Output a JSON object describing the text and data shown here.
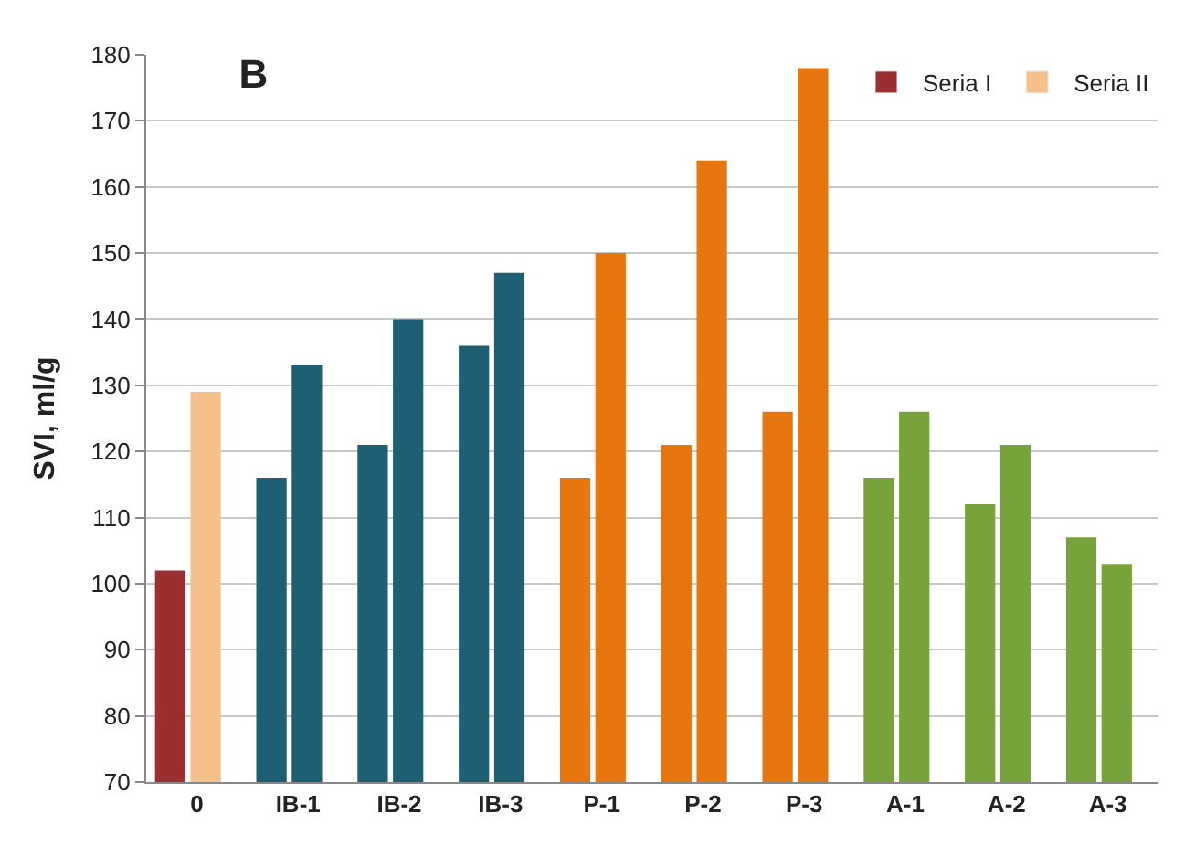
{
  "chart_data": {
    "type": "bar",
    "title": "B",
    "ylabel": "SVI, ml/g",
    "categories": [
      "0",
      "IB-1",
      "IB-2",
      "IB-3",
      "P-1",
      "P-2",
      "P-3",
      "A-1",
      "A-2",
      "A-3"
    ],
    "series": [
      {
        "name": "Seria I",
        "color": "#9b2f2f",
        "colors": [
          "#9b2f2f",
          "#1f5f73",
          "#1f5f73",
          "#1f5f73",
          "#e8760e",
          "#e8760e",
          "#e8760e",
          "#77a33a",
          "#77a33a",
          "#77a33a"
        ],
        "values": [
          102,
          116,
          121,
          136,
          116,
          121,
          126,
          116,
          112,
          107
        ]
      },
      {
        "name": "Seria II",
        "color": "#f5c08a",
        "colors": [
          "#f5c08a",
          "#1f5f73",
          "#1f5f73",
          "#1f5f73",
          "#e8760e",
          "#e8760e",
          "#e8760e",
          "#77a33a",
          "#77a33a",
          "#77a33a"
        ],
        "values": [
          129,
          133,
          140,
          147,
          150,
          164,
          178,
          126,
          121,
          103
        ]
      }
    ],
    "ylim": [
      70,
      180
    ],
    "yticks": [
      70,
      80,
      90,
      100,
      110,
      120,
      130,
      140,
      150,
      160,
      170,
      180
    ],
    "grid": "y",
    "legend": "top right"
  }
}
